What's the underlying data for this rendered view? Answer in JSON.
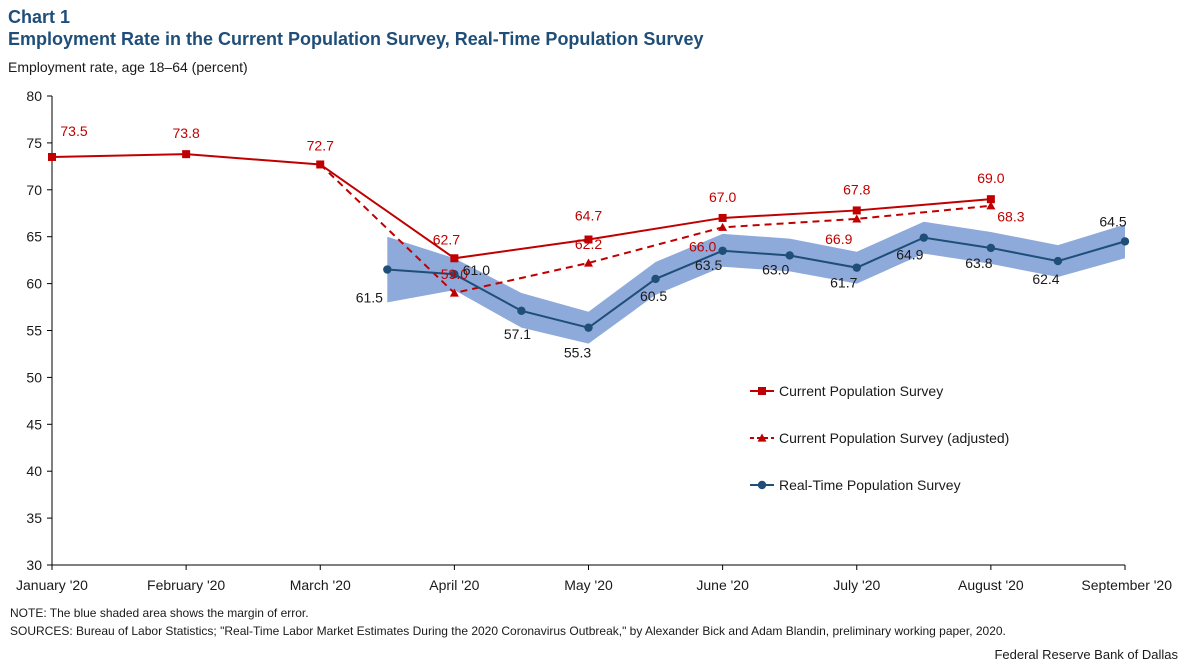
{
  "header": {
    "chart_number": "Chart 1",
    "title": "Employment Rate in the Current Population Survey, Real-Time Population Survey",
    "y_unit_label": "Employment rate, age 18–64 (percent)"
  },
  "footer": {
    "note": "NOTE: The blue shaded area shows the margin of error.",
    "sources": "SOURCES: Bureau of Labor Statistics; \"Real-Time Labor Market Estimates During the 2020 Coronavirus Outbreak,\" by Alexander Bick and Adam Blandin, preliminary working paper, 2020.",
    "credit": "Federal Reserve Bank of Dallas"
  },
  "colors": {
    "cps": "#c00000",
    "rps": "#1f4e79",
    "band": "#8eaadb"
  },
  "chart_data": {
    "type": "line",
    "ylim": [
      30,
      80
    ],
    "yticks": [
      30,
      35,
      40,
      45,
      50,
      55,
      60,
      65,
      70,
      75,
      80
    ],
    "x_tick_labels": [
      "January '20",
      "February '20",
      "March '20",
      "April '20",
      "May '20",
      "June '20",
      "July '20",
      "August '20",
      "September '20"
    ],
    "x_domain": [
      0,
      8
    ],
    "legend_position": "bottom-right",
    "series": [
      {
        "name": "Current Population Survey",
        "style": "solid-square",
        "points": [
          {
            "x": 0,
            "y": 73.5,
            "label": "73.5"
          },
          {
            "x": 1,
            "y": 73.8,
            "label": "73.8"
          },
          {
            "x": 2,
            "y": 72.7,
            "label": "72.7"
          },
          {
            "x": 3,
            "y": 62.7,
            "label": "62.7"
          },
          {
            "x": 4,
            "y": 64.7,
            "label": "64.7"
          },
          {
            "x": 5,
            "y": 67.0,
            "label": "67.0"
          },
          {
            "x": 6,
            "y": 67.8,
            "label": "67.8"
          },
          {
            "x": 7,
            "y": 69.0,
            "label": "69.0"
          }
        ]
      },
      {
        "name": "Current Population Survey (adjusted)",
        "style": "dashed-triangle",
        "points": [
          {
            "x": 2,
            "y": 72.7,
            "label": ""
          },
          {
            "x": 3,
            "y": 59.0,
            "label": "59.0"
          },
          {
            "x": 4,
            "y": 62.2,
            "label": "62.2"
          },
          {
            "x": 5,
            "y": 66.0,
            "label": "66.0"
          },
          {
            "x": 6,
            "y": 66.9,
            "label": "66.9"
          },
          {
            "x": 7,
            "y": 68.3,
            "label": "68.3"
          }
        ]
      },
      {
        "name": "Real-Time Population Survey",
        "style": "solid-circle",
        "points": [
          {
            "x": 2.5,
            "y": 61.5,
            "label": "61.5"
          },
          {
            "x": 3.0,
            "y": 61.0,
            "label": "61.0"
          },
          {
            "x": 3.5,
            "y": 57.1,
            "label": "57.1"
          },
          {
            "x": 4.0,
            "y": 55.3,
            "label": "55.3"
          },
          {
            "x": 4.5,
            "y": 60.5,
            "label": "60.5"
          },
          {
            "x": 5.0,
            "y": 63.5,
            "label": "63.5"
          },
          {
            "x": 5.5,
            "y": 63.0,
            "label": "63.0"
          },
          {
            "x": 6.0,
            "y": 61.7,
            "label": "61.7"
          },
          {
            "x": 6.5,
            "y": 64.9,
            "label": "64.9"
          },
          {
            "x": 7.0,
            "y": 63.8,
            "label": "63.8"
          },
          {
            "x": 7.5,
            "y": 62.4,
            "label": "62.4"
          },
          {
            "x": 8.0,
            "y": 64.5,
            "label": "64.5"
          }
        ]
      }
    ],
    "margin_of_error_band": [
      {
        "x": 2.5,
        "low": 58.0,
        "high": 65.0
      },
      {
        "x": 3.0,
        "low": 59.3,
        "high": 62.7
      },
      {
        "x": 3.5,
        "low": 55.3,
        "high": 59.0
      },
      {
        "x": 4.0,
        "low": 53.6,
        "high": 57.0
      },
      {
        "x": 4.5,
        "low": 58.8,
        "high": 62.3
      },
      {
        "x": 5.0,
        "low": 61.8,
        "high": 65.3
      },
      {
        "x": 5.5,
        "low": 61.3,
        "high": 64.8
      },
      {
        "x": 6.0,
        "low": 60.0,
        "high": 63.4
      },
      {
        "x": 6.5,
        "low": 63.2,
        "high": 66.6
      },
      {
        "x": 7.0,
        "low": 62.1,
        "high": 65.5
      },
      {
        "x": 7.5,
        "low": 60.7,
        "high": 64.1
      },
      {
        "x": 8.0,
        "low": 62.7,
        "high": 66.3
      }
    ]
  }
}
